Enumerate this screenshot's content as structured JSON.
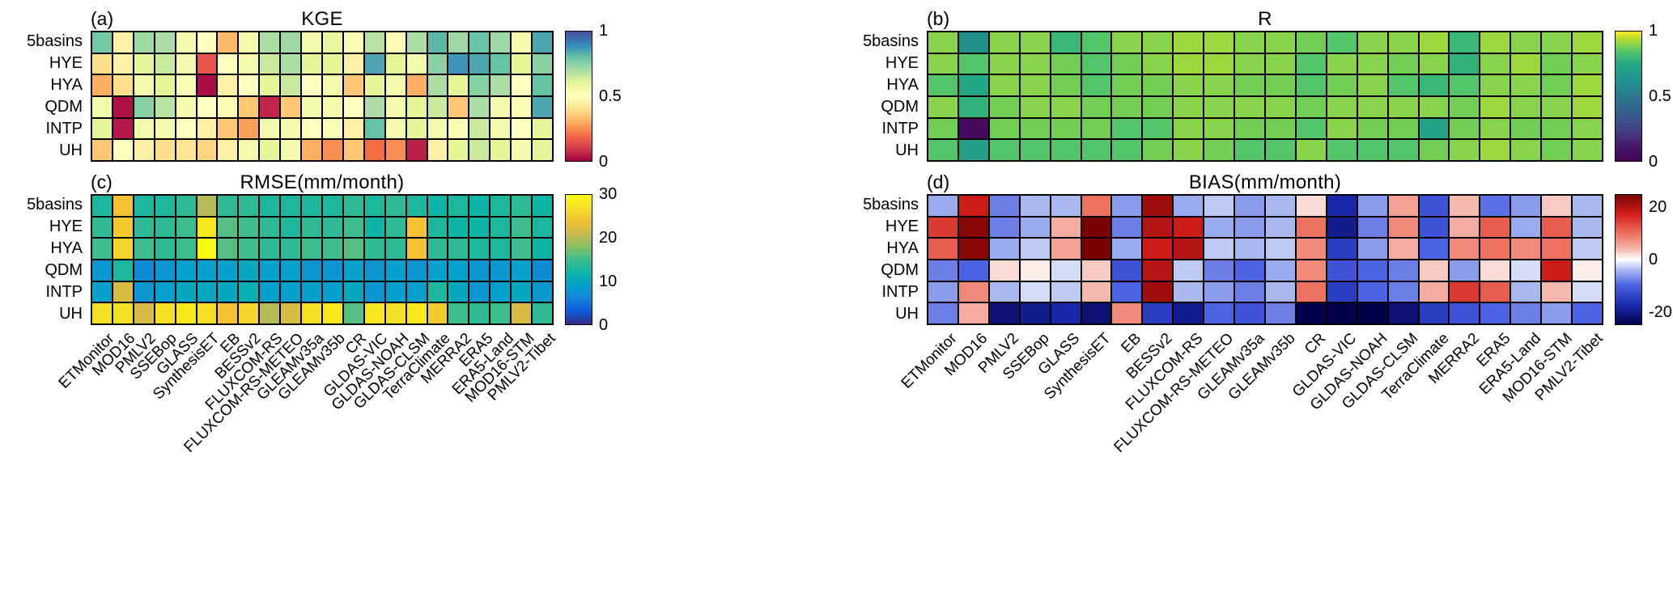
{
  "figure": {
    "background": "#ffffff",
    "description": "2x2 grid of evaluation heatmaps for ET products"
  },
  "chart_data": [
    {
      "id": "a",
      "type": "heatmap",
      "panel_label": "(a)",
      "title": "KGE",
      "rows": [
        "5basins",
        "HYE",
        "HYA",
        "QDM",
        "INTP",
        "UH"
      ],
      "columns": [
        "ETMonitor",
        "MOD16",
        "PMLV2",
        "SSEBop",
        "GLASS",
        "SynthesisET",
        "EB",
        "BESSv2",
        "FLUXCOM-RS",
        "FLUXCOM-RS-METEO",
        "GLEAMv35a",
        "GLEAMv35b",
        "CR",
        "GLDAS-VIC",
        "GLDAS-NOAH",
        "GLDAS-CLSM",
        "TerraClimate",
        "MERRA2",
        "ERA5",
        "ERA5-Land",
        "MOD16-STM",
        "PMLV2-Tibet"
      ],
      "vmin": 0,
      "vmax": 1,
      "colorbar_ticks": [
        1,
        0.5,
        0
      ],
      "show_x_labels": false,
      "colormap": [
        [
          0,
          "#9e0142"
        ],
        [
          0.1,
          "#d53e4f"
        ],
        [
          0.2,
          "#f46d43"
        ],
        [
          0.3,
          "#fdae61"
        ],
        [
          0.4,
          "#fee08b"
        ],
        [
          0.5,
          "#ffffbf"
        ],
        [
          0.6,
          "#e6f598"
        ],
        [
          0.7,
          "#abdda4"
        ],
        [
          0.8,
          "#66c2a5"
        ],
        [
          0.9,
          "#3288bd"
        ],
        [
          1,
          "#45519e"
        ]
      ],
      "values": [
        [
          0.78,
          0.45,
          0.72,
          0.7,
          0.55,
          0.5,
          0.32,
          0.55,
          0.7,
          0.72,
          0.55,
          0.58,
          0.52,
          0.68,
          0.48,
          0.7,
          0.82,
          0.72,
          0.8,
          0.72,
          0.55,
          0.85
        ],
        [
          0.4,
          0.45,
          0.6,
          0.65,
          0.55,
          0.15,
          0.5,
          0.55,
          0.65,
          0.7,
          0.6,
          0.6,
          0.45,
          0.85,
          0.6,
          0.55,
          0.75,
          0.88,
          0.85,
          0.8,
          0.6,
          0.75
        ],
        [
          0.3,
          0.4,
          0.55,
          0.6,
          0.52,
          0.02,
          0.45,
          0.5,
          0.6,
          0.65,
          0.5,
          0.55,
          0.35,
          0.6,
          0.55,
          0.3,
          0.7,
          0.6,
          0.75,
          0.7,
          0.5,
          0.8
        ],
        [
          0.55,
          0.03,
          0.75,
          0.68,
          0.55,
          0.5,
          0.52,
          0.35,
          0.06,
          0.35,
          0.55,
          0.55,
          0.5,
          0.7,
          0.55,
          0.6,
          0.65,
          0.35,
          0.7,
          0.55,
          0.52,
          0.85
        ],
        [
          0.6,
          0.04,
          0.55,
          0.55,
          0.5,
          0.45,
          0.35,
          0.28,
          0.55,
          0.55,
          0.5,
          0.52,
          0.45,
          0.8,
          0.55,
          0.6,
          0.55,
          0.52,
          0.65,
          0.55,
          0.5,
          0.6
        ],
        [
          0.35,
          0.5,
          0.45,
          0.4,
          0.42,
          0.38,
          0.45,
          0.55,
          0.6,
          0.55,
          0.3,
          0.25,
          0.35,
          0.2,
          0.25,
          0.05,
          0.45,
          0.6,
          0.65,
          0.6,
          0.55,
          0.6
        ]
      ]
    },
    {
      "id": "b",
      "type": "heatmap",
      "panel_label": "(b)",
      "title": "R",
      "rows": [
        "5basins",
        "HYE",
        "HYA",
        "QDM",
        "INTP",
        "UH"
      ],
      "columns": [
        "ETMonitor",
        "MOD16",
        "PMLV2",
        "SSEBop",
        "GLASS",
        "SynthesisET",
        "EB",
        "BESSv2",
        "FLUXCOM-RS",
        "FLUXCOM-RS-METEO",
        "GLEAMv35a",
        "GLEAMv35b",
        "CR",
        "GLDAS-VIC",
        "GLDAS-NOAH",
        "GLDAS-CLSM",
        "TerraClimate",
        "MERRA2",
        "ERA5",
        "ERA5-Land",
        "MOD16-STM",
        "PMLV2-Tibet"
      ],
      "vmin": 0,
      "vmax": 1,
      "colorbar_ticks": [
        1,
        0.5,
        0
      ],
      "show_x_labels": false,
      "colormap": [
        [
          0,
          "#440154"
        ],
        [
          0.13,
          "#471d6c"
        ],
        [
          0.25,
          "#414487"
        ],
        [
          0.38,
          "#355f8d"
        ],
        [
          0.5,
          "#2a788e"
        ],
        [
          0.62,
          "#21918c"
        ],
        [
          0.75,
          "#22a884"
        ],
        [
          0.85,
          "#54c568"
        ],
        [
          0.93,
          "#a5db36"
        ],
        [
          1,
          "#fde725"
        ]
      ],
      "values": [
        [
          0.9,
          0.62,
          0.9,
          0.9,
          0.8,
          0.85,
          0.9,
          0.9,
          0.92,
          0.92,
          0.9,
          0.9,
          0.88,
          0.85,
          0.9,
          0.9,
          0.92,
          0.8,
          0.92,
          0.9,
          0.9,
          0.92
        ],
        [
          0.9,
          0.85,
          0.9,
          0.9,
          0.88,
          0.85,
          0.88,
          0.9,
          0.92,
          0.92,
          0.9,
          0.9,
          0.85,
          0.9,
          0.9,
          0.88,
          0.9,
          0.78,
          0.9,
          0.92,
          0.88,
          0.9
        ],
        [
          0.85,
          0.75,
          0.9,
          0.9,
          0.88,
          0.85,
          0.88,
          0.88,
          0.9,
          0.9,
          0.88,
          0.88,
          0.85,
          0.88,
          0.9,
          0.85,
          0.8,
          0.85,
          0.9,
          0.9,
          0.88,
          0.92
        ],
        [
          0.9,
          0.78,
          0.88,
          0.9,
          0.9,
          0.88,
          0.88,
          0.88,
          0.9,
          0.9,
          0.9,
          0.9,
          0.88,
          0.9,
          0.9,
          0.9,
          0.9,
          0.88,
          0.92,
          0.9,
          0.9,
          0.92
        ],
        [
          0.88,
          0.05,
          0.88,
          0.88,
          0.88,
          0.88,
          0.85,
          0.85,
          0.9,
          0.9,
          0.88,
          0.88,
          0.85,
          0.9,
          0.88,
          0.88,
          0.72,
          0.88,
          0.9,
          0.88,
          0.88,
          0.9
        ],
        [
          0.85,
          0.7,
          0.85,
          0.85,
          0.85,
          0.85,
          0.85,
          0.88,
          0.9,
          0.88,
          0.85,
          0.85,
          0.9,
          0.85,
          0.85,
          0.85,
          0.88,
          0.9,
          0.92,
          0.9,
          0.88,
          0.9
        ]
      ]
    },
    {
      "id": "c",
      "type": "heatmap",
      "panel_label": "(c)",
      "title": "RMSE(mm/month)",
      "rows": [
        "5basins",
        "HYE",
        "HYA",
        "QDM",
        "INTP",
        "UH"
      ],
      "columns": [
        "ETMonitor",
        "MOD16",
        "PMLV2",
        "SSEBop",
        "GLASS",
        "SynthesisET",
        "EB",
        "BESSv2",
        "FLUXCOM-RS",
        "FLUXCOM-RS-METEO",
        "GLEAMv35a",
        "GLEAMv35b",
        "CR",
        "GLDAS-VIC",
        "GLDAS-NOAH",
        "GLDAS-CLSM",
        "TerraClimate",
        "MERRA2",
        "ERA5",
        "ERA5-Land",
        "MOD16-STM",
        "PMLV2-Tibet"
      ],
      "vmin": 0,
      "vmax": 30,
      "colorbar_ticks": [
        30,
        20,
        10,
        0
      ],
      "show_x_labels": true,
      "colormap": [
        [
          0,
          "#352a87"
        ],
        [
          0.1,
          "#0f5cdd"
        ],
        [
          0.2,
          "#1481d6"
        ],
        [
          0.3,
          "#06a0cd"
        ],
        [
          0.4,
          "#0db5a6"
        ],
        [
          0.5,
          "#3ebc8d"
        ],
        [
          0.6,
          "#86bf66"
        ],
        [
          0.7,
          "#c9ba4e"
        ],
        [
          0.8,
          "#f3c133"
        ],
        [
          0.9,
          "#f5df25"
        ],
        [
          1,
          "#f9fb0e"
        ]
      ],
      "values": [
        [
          13,
          24,
          13,
          13,
          14,
          20,
          14,
          14,
          13,
          13,
          13,
          13,
          14,
          13,
          14,
          13,
          12,
          13,
          12,
          13,
          14,
          12
        ],
        [
          14,
          25,
          14,
          14,
          15,
          28,
          16,
          15,
          14,
          13,
          14,
          14,
          15,
          12,
          14,
          24,
          13,
          12,
          12,
          13,
          15,
          13
        ],
        [
          15,
          26,
          15,
          14,
          15,
          30,
          16,
          15,
          14,
          14,
          15,
          15,
          16,
          14,
          14,
          24,
          14,
          14,
          13,
          13,
          15,
          12
        ],
        [
          8,
          13,
          7,
          8,
          9,
          9,
          9,
          10,
          9,
          9,
          8,
          8,
          9,
          8,
          9,
          8,
          9,
          9,
          8,
          8,
          9,
          7
        ],
        [
          9,
          22,
          8,
          9,
          10,
          10,
          10,
          11,
          9,
          9,
          9,
          9,
          10,
          8,
          9,
          9,
          13,
          10,
          8,
          9,
          10,
          8
        ],
        [
          27,
          27,
          22,
          27,
          28,
          27,
          24,
          26,
          20,
          22,
          27,
          28,
          16,
          28,
          27,
          28,
          25,
          15,
          14,
          15,
          22,
          14
        ]
      ]
    },
    {
      "id": "d",
      "type": "heatmap",
      "panel_label": "(d)",
      "title": "BIAS(mm/month)",
      "rows": [
        "5basins",
        "HYE",
        "HYA",
        "QDM",
        "INTP",
        "UH"
      ],
      "columns": [
        "ETMonitor",
        "MOD16",
        "PMLV2",
        "SSEBop",
        "GLASS",
        "SynthesisET",
        "EB",
        "BESSv2",
        "FLUXCOM-RS",
        "FLUXCOM-RS-METEO",
        "GLEAMv35a",
        "GLEAMv35b",
        "CR",
        "GLDAS-VIC",
        "GLDAS-NOAH",
        "GLDAS-CLSM",
        "TerraClimate",
        "MERRA2",
        "ERA5",
        "ERA5-Land",
        "MOD16-STM",
        "PMLV2-Tibet"
      ],
      "vmin": -25,
      "vmax": 25,
      "colorbar_ticks": [
        20,
        0,
        -20
      ],
      "show_x_labels": true,
      "colormap": [
        [
          0,
          "#04014a"
        ],
        [
          0.15,
          "#1a2bb0"
        ],
        [
          0.3,
          "#4b62e2"
        ],
        [
          0.42,
          "#aab8f0"
        ],
        [
          0.5,
          "#ffffff"
        ],
        [
          0.58,
          "#f5b8ac"
        ],
        [
          0.7,
          "#ee7261"
        ],
        [
          0.85,
          "#d21e1a"
        ],
        [
          1,
          "#7a0403"
        ]
      ],
      "values": [
        [
          -5,
          18,
          -8,
          -4,
          -4,
          10,
          -6,
          22,
          -5,
          -3,
          -6,
          -4,
          2,
          -18,
          -6,
          6,
          -12,
          4,
          -9,
          -6,
          3,
          -4
        ],
        [
          15,
          24,
          -8,
          -5,
          5,
          25,
          -8,
          20,
          18,
          -5,
          -6,
          -4,
          10,
          -20,
          -8,
          8,
          -12,
          5,
          12,
          -5,
          12,
          -4
        ],
        [
          12,
          24,
          -5,
          -3,
          6,
          25,
          -5,
          18,
          20,
          -3,
          -4,
          -3,
          8,
          -15,
          -6,
          5,
          -10,
          8,
          10,
          8,
          10,
          -3
        ],
        [
          -8,
          -10,
          2,
          1,
          -2,
          3,
          -12,
          20,
          -3,
          -8,
          -10,
          -5,
          8,
          -12,
          -10,
          -8,
          3,
          -6,
          2,
          -2,
          18,
          1
        ],
        [
          -6,
          8,
          -4,
          -2,
          -3,
          4,
          -10,
          22,
          -4,
          -6,
          -8,
          -4,
          10,
          -15,
          -10,
          -8,
          5,
          15,
          12,
          -4,
          4,
          -2
        ],
        [
          -8,
          5,
          -22,
          -20,
          -18,
          -22,
          8,
          -15,
          -20,
          -10,
          -12,
          -8,
          -25,
          -25,
          -25,
          -22,
          -15,
          -12,
          -10,
          -8,
          -6,
          -10
        ]
      ]
    }
  ]
}
